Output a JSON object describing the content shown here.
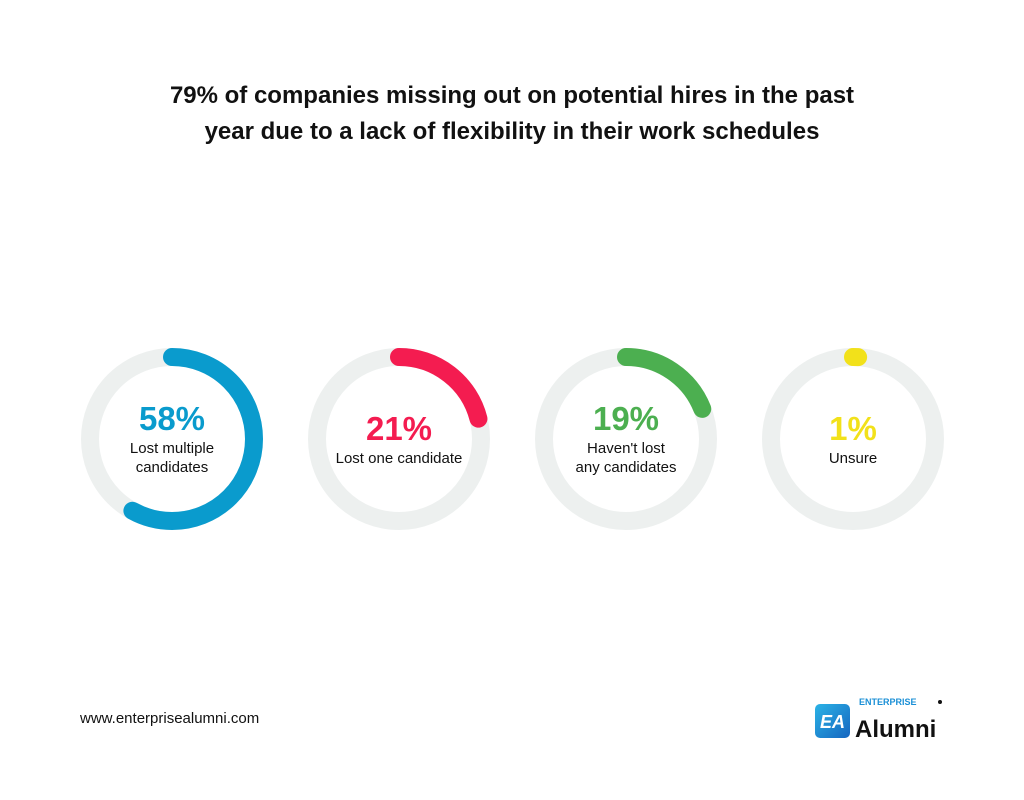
{
  "chart_data": {
    "type": "donut",
    "title": "79% of companies missing out on potential hires in the past year due to a lack of flexibility in their work schedules",
    "track_color": "#edf0ef",
    "items": [
      {
        "value": 58,
        "label": "58%",
        "caption": "Lost multiple candidates",
        "caption_lines": [
          "Lost multiple",
          "candidates"
        ],
        "color": "#0a9bcd"
      },
      {
        "value": 21,
        "label": "21%",
        "caption": "Lost one candidate",
        "caption_lines": [
          "Lost one candidate"
        ],
        "color": "#f41c50"
      },
      {
        "value": 19,
        "label": "19%",
        "caption": "Haven't lost any candidates",
        "caption_lines": [
          "Haven't lost",
          "any candidates"
        ],
        "color": "#4caf50"
      },
      {
        "value": 1,
        "label": "1%",
        "caption": "Unsure",
        "caption_lines": [
          "Unsure"
        ],
        "color": "#f2e11a"
      }
    ]
  },
  "footer": {
    "url": "www.enterprisealumni.com",
    "logo_text": "EA ENTERPRISE Alumni"
  }
}
